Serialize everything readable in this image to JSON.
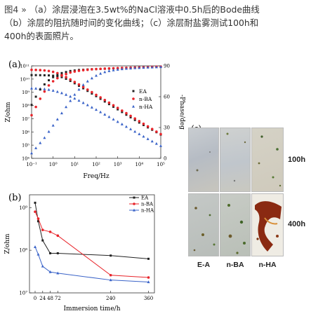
{
  "caption": {
    "fig_num": "图4",
    "arrow": "»",
    "text_line1": "（a）涂层浸泡在3.5wt%的NaCl溶液中0.5h后的Bode曲线",
    "text_line2": "（b）涂层的阻抗随时间的变化曲线；（c）涂层耐盐雾测试100h和",
    "text_line3": "400h的表面照片。"
  },
  "panel_a": {
    "tag": "(a)",
    "xlabel": "Freq/Hz",
    "ylabel": "Z/ohm",
    "y2label": "-Phase/deg",
    "xticks": [
      "10⁻¹",
      "10⁰",
      "10¹",
      "10²",
      "10³",
      "10⁴",
      "10⁵"
    ],
    "yticks": [
      "10⁴",
      "10⁵",
      "10⁶",
      "10⁷",
      "10⁸",
      "10⁹",
      "10¹⁰",
      "10¹¹"
    ],
    "y2ticks": [
      "0",
      "30",
      "60",
      "90"
    ],
    "legend": [
      "EA",
      "n-BA",
      "n-HA"
    ]
  },
  "panel_b": {
    "tag": "(b)",
    "xlabel": "Immersion time/h",
    "ylabel": "Z/ohm",
    "xticks": [
      "0",
      "24",
      "48",
      "72",
      "240",
      "360"
    ],
    "yticks": [
      "10⁷",
      "10⁸",
      "10⁹"
    ],
    "legend": [
      "EA",
      "n-BA",
      "n-HA"
    ]
  },
  "panel_c": {
    "tag": "(c)",
    "row_labels": [
      "100h",
      "400h"
    ],
    "col_labels": [
      "E-A",
      "n-BA",
      "n-HA"
    ]
  },
  "colors": {
    "EA": "#222222",
    "nBA": "#e8242a",
    "nHA": "#3a63c8"
  },
  "chart_data": [
    {
      "type": "scatter",
      "title": "",
      "xlabel": "Freq/Hz",
      "ylabel": "Z/ohm",
      "y2label": "-Phase/deg",
      "x_scale": "log",
      "y_scale": "log",
      "xlim": [
        0.1,
        100000
      ],
      "ylim": [
        10000,
        100000000000
      ],
      "y2lim": [
        0,
        90
      ],
      "legend_position": "right",
      "x": [
        0.1,
        0.158,
        0.251,
        0.398,
        0.631,
        1,
        1.585,
        2.512,
        3.981,
        6.31,
        10,
        15.85,
        25.12,
        39.81,
        63.1,
        100,
        158.5,
        251.2,
        398.1,
        631,
        1000,
        1585,
        2512,
        3981,
        6310,
        10000,
        15850,
        25120,
        39810,
        63100,
        100000
      ],
      "series": [
        {
          "name": "EA",
          "axis": "Z",
          "values": [
            20000000000.0,
            19900000000.0,
            19700000000.0,
            19400000000.0,
            19000000000.0,
            18000000000.0,
            16500000000.0,
            14000000000.0,
            10500000000.0,
            7200000000.0,
            4800000000.0,
            3100000000.0,
            2000000000.0,
            1270000000.0,
            800000000.0,
            510000000.0,
            320000000.0,
            200000000.0,
            127000000.0,
            80000000.0,
            51000000.0,
            32000000.0,
            20000000.0,
            12700000.0,
            8000000.0,
            5100000.0,
            3300000.0,
            2200000.0,
            1450000.0,
            950000.0,
            630000.0
          ]
        },
        {
          "name": "n-BA",
          "axis": "Z",
          "values": [
            50000000000.0,
            49000000000.0,
            47500000000.0,
            45000000000.0,
            41000000000.0,
            35000000000.0,
            28000000000.0,
            20500000000.0,
            14000000000.0,
            9300000000.0,
            6000000000.0,
            3900000000.0,
            2500000000.0,
            1600000000.0,
            1020000000.0,
            640000000.0,
            410000000.0,
            260000000.0,
            163000000.0,
            103000000.0,
            65000000.0,
            41000000.0,
            26000000.0,
            16300000.0,
            10300000.0,
            6500000.0,
            4100000.0,
            2600000.0,
            1650000.0,
            1050000.0,
            680000.0
          ]
        },
        {
          "name": "n-HA",
          "axis": "Z",
          "values": [
            2000000000.0,
            1950000000.0,
            1880000000.0,
            1750000000.0,
            1580000000.0,
            1350000000.0,
            1100000000.0,
            880000000.0,
            660000000.0,
            480000000.0,
            340000000.0,
            235000000.0,
            160000000.0,
            108000000.0,
            72000000.0,
            48000000.0,
            32000000.0,
            21000000.0,
            13800000.0,
            9000000.0,
            5900000.0,
            3850000.0,
            2500000.0,
            1630000.0,
            1060000.0,
            690000.0,
            450000.0,
            295000.0,
            195000.0,
            130000.0,
            88000.0
          ]
        },
        {
          "name": "EA",
          "axis": "Phase",
          "values": [
            52,
            60,
            67,
            72,
            76,
            79,
            81,
            83,
            84,
            85,
            85.5,
            86,
            86.2,
            86.5,
            86.7,
            86.8,
            87,
            87.2,
            87.3,
            87.5,
            87.6,
            87.8,
            88,
            88.1,
            88.3,
            88.4,
            88.5,
            88.6,
            88.8,
            89,
            89.2
          ]
        },
        {
          "name": "n-BA",
          "axis": "Phase",
          "values": [
            42,
            50,
            58,
            65,
            71,
            75,
            78,
            80.5,
            82,
            83.5,
            84.5,
            85.2,
            85.8,
            86.2,
            86.6,
            86.9,
            87.1,
            87.3,
            87.5,
            87.7,
            87.8,
            88,
            88.1,
            88.3,
            88.4,
            88.5,
            88.7,
            88.8,
            89,
            89.2,
            89.3
          ]
        },
        {
          "name": "n-HA",
          "axis": "Phase",
          "values": [
            5,
            10,
            15,
            20,
            26,
            32,
            38,
            44,
            50,
            56,
            62,
            67,
            71.5,
            75,
            78,
            80.5,
            82.5,
            84,
            85,
            85.8,
            86.4,
            86.9,
            87.3,
            87.6,
            87.9,
            88.1,
            88.3,
            88.5,
            88.6,
            88.8,
            89
          ]
        }
      ]
    },
    {
      "type": "line",
      "title": "",
      "xlabel": "Immersion time/h",
      "ylabel": "Z/ohm",
      "y_scale": "log",
      "xlim": [
        0,
        370
      ],
      "ylim": [
        10000000,
        2000000000
      ],
      "legend_position": "top-right",
      "x": [
        0,
        10,
        24,
        48,
        72,
        240,
        360
      ],
      "series": [
        {
          "name": "EA",
          "values": [
            1300000000.0,
            480000000.0,
            170000000.0,
            85000000.0,
            85000000.0,
            75000000.0,
            63000000.0
          ]
        },
        {
          "name": "n-BA",
          "values": [
            800000000.0,
            550000000.0,
            300000000.0,
            270000000.0,
            220000000.0,
            26000000.0,
            23000000.0
          ]
        },
        {
          "name": "n-HA",
          "values": [
            120000000.0,
            80000000.0,
            42000000.0,
            31000000.0,
            29000000.0,
            20000000.0,
            18000000.0
          ]
        }
      ]
    }
  ]
}
